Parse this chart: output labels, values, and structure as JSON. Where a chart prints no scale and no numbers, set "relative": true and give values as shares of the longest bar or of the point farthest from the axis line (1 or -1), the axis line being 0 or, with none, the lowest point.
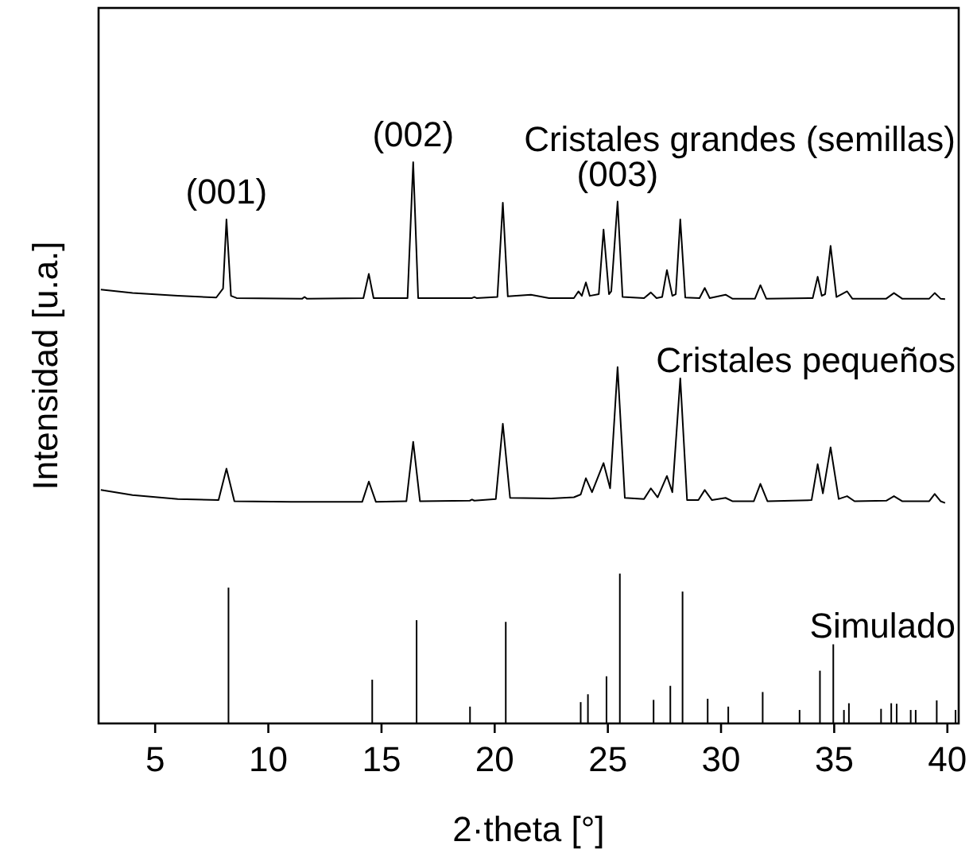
{
  "chart_data": {
    "type": "line",
    "relative": true,
    "xlabel": "2·theta [°]",
    "ylabel": "Intensidad [u.a.]",
    "xlim": [
      2.5,
      40.5
    ],
    "xticks": [
      5,
      10,
      15,
      20,
      25,
      30,
      35,
      40
    ],
    "grid": false,
    "legend": false,
    "marker": "none",
    "line_style": "solid",
    "series": [
      {
        "name": "Cristales grandes (semillas)",
        "color": "#000000",
        "x": [
          2.6,
          4,
          6,
          7.7,
          8.0,
          8.15,
          8.35,
          8.6,
          11.5,
          11.6,
          11.7,
          14.2,
          14.44,
          14.65,
          16.15,
          16.4,
          16.62,
          19.0,
          19.1,
          19.2,
          20.12,
          20.36,
          20.58,
          21.6,
          22.4,
          23.5,
          23.7,
          23.85,
          24.03,
          24.2,
          24.6,
          24.81,
          25.05,
          25.15,
          25.43,
          25.65,
          26.6,
          26.9,
          27.15,
          27.4,
          27.61,
          27.85,
          28.0,
          28.2,
          28.42,
          29.05,
          29.28,
          29.5,
          30.2,
          30.5,
          31.5,
          31.74,
          32.0,
          34.05,
          34.27,
          34.45,
          34.6,
          34.84,
          35.1,
          35.57,
          35.8,
          37.3,
          37.64,
          38.0,
          39.2,
          39.44,
          39.7,
          39.9
        ],
        "values": [
          0.773,
          0.767,
          0.762,
          0.759,
          0.775,
          0.898,
          0.762,
          0.758,
          0.757,
          0.76,
          0.757,
          0.758,
          0.801,
          0.758,
          0.758,
          1.0,
          0.758,
          0.758,
          0.76,
          0.758,
          0.76,
          0.928,
          0.761,
          0.764,
          0.758,
          0.758,
          0.77,
          0.762,
          0.786,
          0.762,
          0.765,
          0.88,
          0.765,
          0.77,
          0.93,
          0.76,
          0.758,
          0.768,
          0.758,
          0.76,
          0.808,
          0.762,
          0.765,
          0.898,
          0.759,
          0.758,
          0.776,
          0.758,
          0.764,
          0.757,
          0.757,
          0.781,
          0.757,
          0.758,
          0.796,
          0.762,
          0.765,
          0.851,
          0.76,
          0.77,
          0.757,
          0.757,
          0.767,
          0.757,
          0.757,
          0.767,
          0.757,
          0.756
        ]
      },
      {
        "name": "Cristales pequeños",
        "color": "#000000",
        "x": [
          2.6,
          4,
          6,
          7.8,
          8.15,
          8.5,
          11,
          14.15,
          14.44,
          14.75,
          16.1,
          16.4,
          16.7,
          18.9,
          19.0,
          19.1,
          20.05,
          20.36,
          20.68,
          22.5,
          23.5,
          23.8,
          24.03,
          24.3,
          24.81,
          25.1,
          25.43,
          25.75,
          26.6,
          26.9,
          27.2,
          27.61,
          27.85,
          28.2,
          28.5,
          29.0,
          29.28,
          29.6,
          30.2,
          30.5,
          31.45,
          31.74,
          32.05,
          34.0,
          34.27,
          34.5,
          34.84,
          35.2,
          35.57,
          35.9,
          37.3,
          37.64,
          38.0,
          39.2,
          39.44,
          39.7,
          39.9
        ],
        "values": [
          0.416,
          0.407,
          0.4,
          0.398,
          0.454,
          0.396,
          0.395,
          0.395,
          0.431,
          0.395,
          0.396,
          0.502,
          0.396,
          0.397,
          0.399,
          0.397,
          0.4,
          0.534,
          0.402,
          0.401,
          0.403,
          0.408,
          0.437,
          0.412,
          0.464,
          0.419,
          0.635,
          0.402,
          0.4,
          0.419,
          0.403,
          0.441,
          0.412,
          0.615,
          0.398,
          0.398,
          0.416,
          0.398,
          0.402,
          0.396,
          0.396,
          0.427,
          0.396,
          0.398,
          0.462,
          0.41,
          0.492,
          0.4,
          0.405,
          0.396,
          0.397,
          0.405,
          0.396,
          0.396,
          0.409,
          0.396,
          0.393
        ]
      },
      {
        "name": "Simulado",
        "type": "bar",
        "color": "#000000",
        "x": [
          8.24,
          14.59,
          16.55,
          18.91,
          20.49,
          23.8,
          24.12,
          24.94,
          25.53,
          27.02,
          27.76,
          28.3,
          29.41,
          30.32,
          31.84,
          33.47,
          34.37,
          34.96,
          35.43,
          35.65,
          37.07,
          37.52,
          37.76,
          38.38,
          38.6,
          39.53,
          40.36
        ],
        "values": [
          0.242,
          0.078,
          0.184,
          0.03,
          0.181,
          0.038,
          0.052,
          0.084,
          0.267,
          0.042,
          0.067,
          0.235,
          0.044,
          0.03,
          0.056,
          0.024,
          0.094,
          0.141,
          0.024,
          0.036,
          0.026,
          0.036,
          0.035,
          0.024,
          0.024,
          0.041,
          0.024
        ]
      }
    ],
    "annotations": [
      {
        "text": "(001)",
        "x": 8.15,
        "y": 0.898
      },
      {
        "text": "(002)",
        "x": 16.4,
        "y": 1.0
      },
      {
        "text": "(003)",
        "x": 25.43,
        "y": 0.93
      }
    ]
  }
}
